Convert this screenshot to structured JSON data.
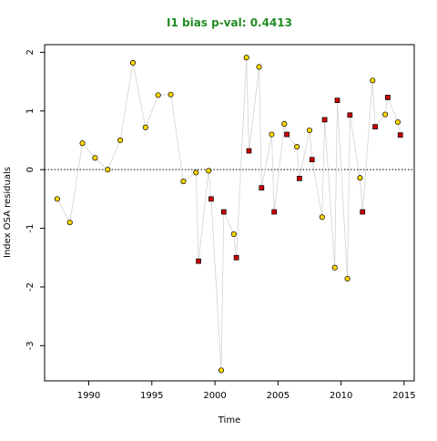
{
  "chart_data": {
    "type": "scatter",
    "title": "I1 bias p-val: 0.4413",
    "title_color": "#228B22",
    "xlabel": "Time",
    "ylabel": "Index OSA residuals",
    "xlim": [
      1986.5,
      2015.8
    ],
    "ylim": [
      -3.6,
      2.13
    ],
    "xticks": [
      1990,
      1995,
      2000,
      2005,
      2010,
      2015
    ],
    "yticks": [
      -3,
      -2,
      -1,
      0,
      1,
      2
    ],
    "reference_line": 0,
    "grid": false,
    "line_color": "#d3d3d3",
    "series": [
      {
        "marker": "circle",
        "color": "#FFD700",
        "x": [
          1987.5,
          1988.5,
          1989.5,
          1990.5,
          1991.5,
          1992.5,
          1993.5,
          1994.5,
          1995.5,
          1996.5,
          1997.5,
          1998.5,
          1999.5,
          2000.5,
          2001.5,
          2002.5,
          2003.5,
          2004.5,
          2005.5,
          2006.5,
          2007.5,
          2008.5,
          2009.5,
          2010.5,
          2011.5,
          2012.5,
          2013.5,
          2014.5
        ],
        "y": [
          -0.5,
          -0.9,
          0.45,
          0.2,
          0.0,
          0.5,
          1.82,
          0.72,
          1.27,
          1.28,
          -0.2,
          -0.05,
          -0.02,
          -3.42,
          -1.1,
          1.91,
          1.75,
          0.6,
          0.78,
          0.39,
          0.67,
          -0.81,
          -1.67,
          -1.86,
          -0.14,
          1.52,
          0.94,
          0.81
        ]
      },
      {
        "marker": "square",
        "color": "#CC0000",
        "x": [
          1998.7,
          1999.7,
          2000.7,
          2001.7,
          2002.7,
          2003.7,
          2004.7,
          2005.7,
          2006.7,
          2007.7,
          2008.7,
          2009.7,
          2010.7,
          2011.7,
          2012.7,
          2013.7,
          2014.7
        ],
        "y": [
          -1.56,
          -0.5,
          -0.72,
          -1.5,
          0.32,
          -0.31,
          -0.72,
          0.6,
          -0.15,
          0.17,
          0.85,
          1.18,
          0.93,
          -0.72,
          0.73,
          1.23,
          0.59
        ]
      }
    ]
  }
}
